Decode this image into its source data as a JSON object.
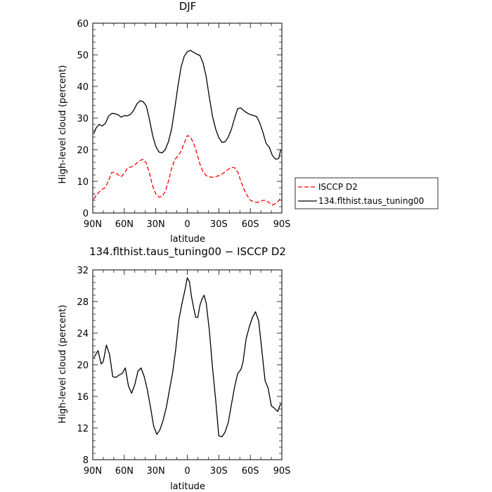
{
  "chart_data": [
    {
      "type": "line",
      "title": "DJF",
      "xlabel": "",
      "ylabel": "High-level cloud (percent)",
      "xlim": [
        90,
        -90
      ],
      "ylim": [
        0,
        60
      ],
      "x_ticks": [
        90,
        60,
        30,
        0,
        -30,
        -60,
        -90
      ],
      "x_tick_labels": [
        "90N",
        "60N",
        "30N",
        "0",
        "30S",
        "60S",
        "90S"
      ],
      "y_ticks": [
        0,
        10,
        20,
        30,
        40,
        50,
        60
      ],
      "y_tick_labels": [
        "0",
        "10",
        "20",
        "30",
        "40",
        "50",
        "60"
      ],
      "legend": "outside-right",
      "series": [
        {
          "name": "ISCCP D2",
          "color": "#ff0000",
          "dash": "dashed",
          "x": [
            89,
            87,
            84,
            81,
            78,
            75,
            72,
            69,
            66,
            63,
            60,
            57,
            54,
            51,
            48,
            45,
            42,
            39,
            36,
            33,
            30,
            27,
            24,
            21,
            18,
            15,
            12,
            9,
            6,
            3,
            0,
            -3,
            -6,
            -9,
            -12,
            -15,
            -18,
            -21,
            -24,
            -27,
            -30,
            -33,
            -36,
            -39,
            -42,
            -45,
            -48,
            -51,
            -54,
            -57,
            -60,
            -63,
            -66,
            -69,
            -72,
            -75,
            -78,
            -81,
            -84,
            -87,
            -89
          ],
          "values": [
            4.3,
            5.5,
            6.6,
            7.5,
            8.0,
            10.2,
            12.8,
            12.9,
            12.1,
            11.4,
            12.5,
            14.2,
            14.5,
            14.9,
            15.8,
            16.6,
            17.0,
            15.8,
            12.5,
            8.5,
            6.0,
            5.0,
            5.2,
            6.8,
            10.0,
            14.0,
            16.8,
            18.0,
            19.5,
            22.0,
            24.5,
            24.0,
            22.0,
            19.0,
            15.5,
            13.0,
            11.8,
            11.4,
            11.3,
            11.5,
            11.8,
            12.3,
            13.0,
            13.8,
            14.4,
            14.3,
            13.0,
            10.0,
            7.5,
            5.5,
            4.0,
            3.6,
            3.3,
            3.5,
            4.0,
            4.0,
            3.2,
            2.5,
            3.0,
            3.8,
            4.8
          ]
        },
        {
          "name": "134.flthist.taus_tuning00",
          "color": "#000000",
          "dash": "solid",
          "x": [
            89,
            87,
            84,
            81,
            78,
            75,
            72,
            69,
            66,
            63,
            60,
            57,
            54,
            51,
            48,
            45,
            42,
            39,
            36,
            33,
            30,
            27,
            24,
            21,
            18,
            15,
            12,
            9,
            6,
            3,
            0,
            -3,
            -6,
            -9,
            -12,
            -15,
            -18,
            -21,
            -24,
            -27,
            -30,
            -33,
            -36,
            -39,
            -42,
            -45,
            -48,
            -51,
            -54,
            -57,
            -60,
            -63,
            -66,
            -69,
            -72,
            -75,
            -78,
            -81,
            -84,
            -87,
            -89
          ],
          "values": [
            25.1,
            26.8,
            28.0,
            27.5,
            28.3,
            30.6,
            31.5,
            31.4,
            31.1,
            30.3,
            30.8,
            30.7,
            31.2,
            32.5,
            34.5,
            35.5,
            35.2,
            33.8,
            29.5,
            24.5,
            21.0,
            19.3,
            19.0,
            20.0,
            22.5,
            26.5,
            33.0,
            40.0,
            46.0,
            49.5,
            51.0,
            51.4,
            50.8,
            50.2,
            49.8,
            47.5,
            43.0,
            36.5,
            30.5,
            26.5,
            23.8,
            22.3,
            22.5,
            24.0,
            26.5,
            30.0,
            33.0,
            33.2,
            32.3,
            31.6,
            31.1,
            30.8,
            30.5,
            28.5,
            25.5,
            22.0,
            20.8,
            18.2,
            17.0,
            17.2,
            20.0
          ]
        }
      ]
    },
    {
      "type": "line",
      "title": "134.flthist.taus_tuning00 − ISCCP D2",
      "xlabel": "latitude",
      "ylabel": "High-level cloud (percent)",
      "xlim": [
        90,
        -90
      ],
      "ylim": [
        8,
        32
      ],
      "x_ticks": [
        90,
        60,
        30,
        0,
        -30,
        -60,
        -90
      ],
      "x_tick_labels": [
        "90N",
        "60N",
        "30N",
        "0",
        "30S",
        "60S",
        "90S"
      ],
      "y_ticks": [
        8,
        12,
        16,
        20,
        24,
        28,
        32
      ],
      "y_tick_labels": [
        "8",
        "12",
        "16",
        "20",
        "24",
        "28",
        "32"
      ],
      "legend": "none",
      "series": [
        {
          "color": "#000000",
          "dash": "solid",
          "x": [
            89,
            85,
            82,
            80,
            77,
            74,
            71,
            68,
            65,
            62,
            59,
            56,
            53,
            50,
            47,
            44,
            41,
            38,
            35,
            32,
            29,
            26,
            23,
            20,
            17,
            14,
            11,
            8,
            5,
            2,
            0,
            -2,
            -4,
            -6,
            -8,
            -10,
            -12,
            -14,
            -16,
            -18,
            -21,
            -24,
            -27,
            -30,
            -33,
            -36,
            -39,
            -42,
            -45,
            -48,
            -51,
            -53,
            -56,
            -59,
            -62,
            -65,
            -68,
            -71,
            -74,
            -77,
            -80,
            -83,
            -86,
            -89
          ],
          "values": [
            20.9,
            21.8,
            20.1,
            20.4,
            22.5,
            21.3,
            18.5,
            18.4,
            18.7,
            18.9,
            19.6,
            17.3,
            16.4,
            17.5,
            19.2,
            19.6,
            18.5,
            16.8,
            14.6,
            12.2,
            11.2,
            11.8,
            13.0,
            14.6,
            16.8,
            19.0,
            22.0,
            25.7,
            27.8,
            29.6,
            31.0,
            30.5,
            28.6,
            27.2,
            26.0,
            26.0,
            27.5,
            28.3,
            28.8,
            27.8,
            24.3,
            19.6,
            15.5,
            11.0,
            10.9,
            11.5,
            12.7,
            15.0,
            17.2,
            18.9,
            19.4,
            20.3,
            23.3,
            24.8,
            26.0,
            26.7,
            25.5,
            21.8,
            18.0,
            17.0,
            14.8,
            14.5,
            14.1,
            15.1
          ]
        }
      ]
    }
  ]
}
